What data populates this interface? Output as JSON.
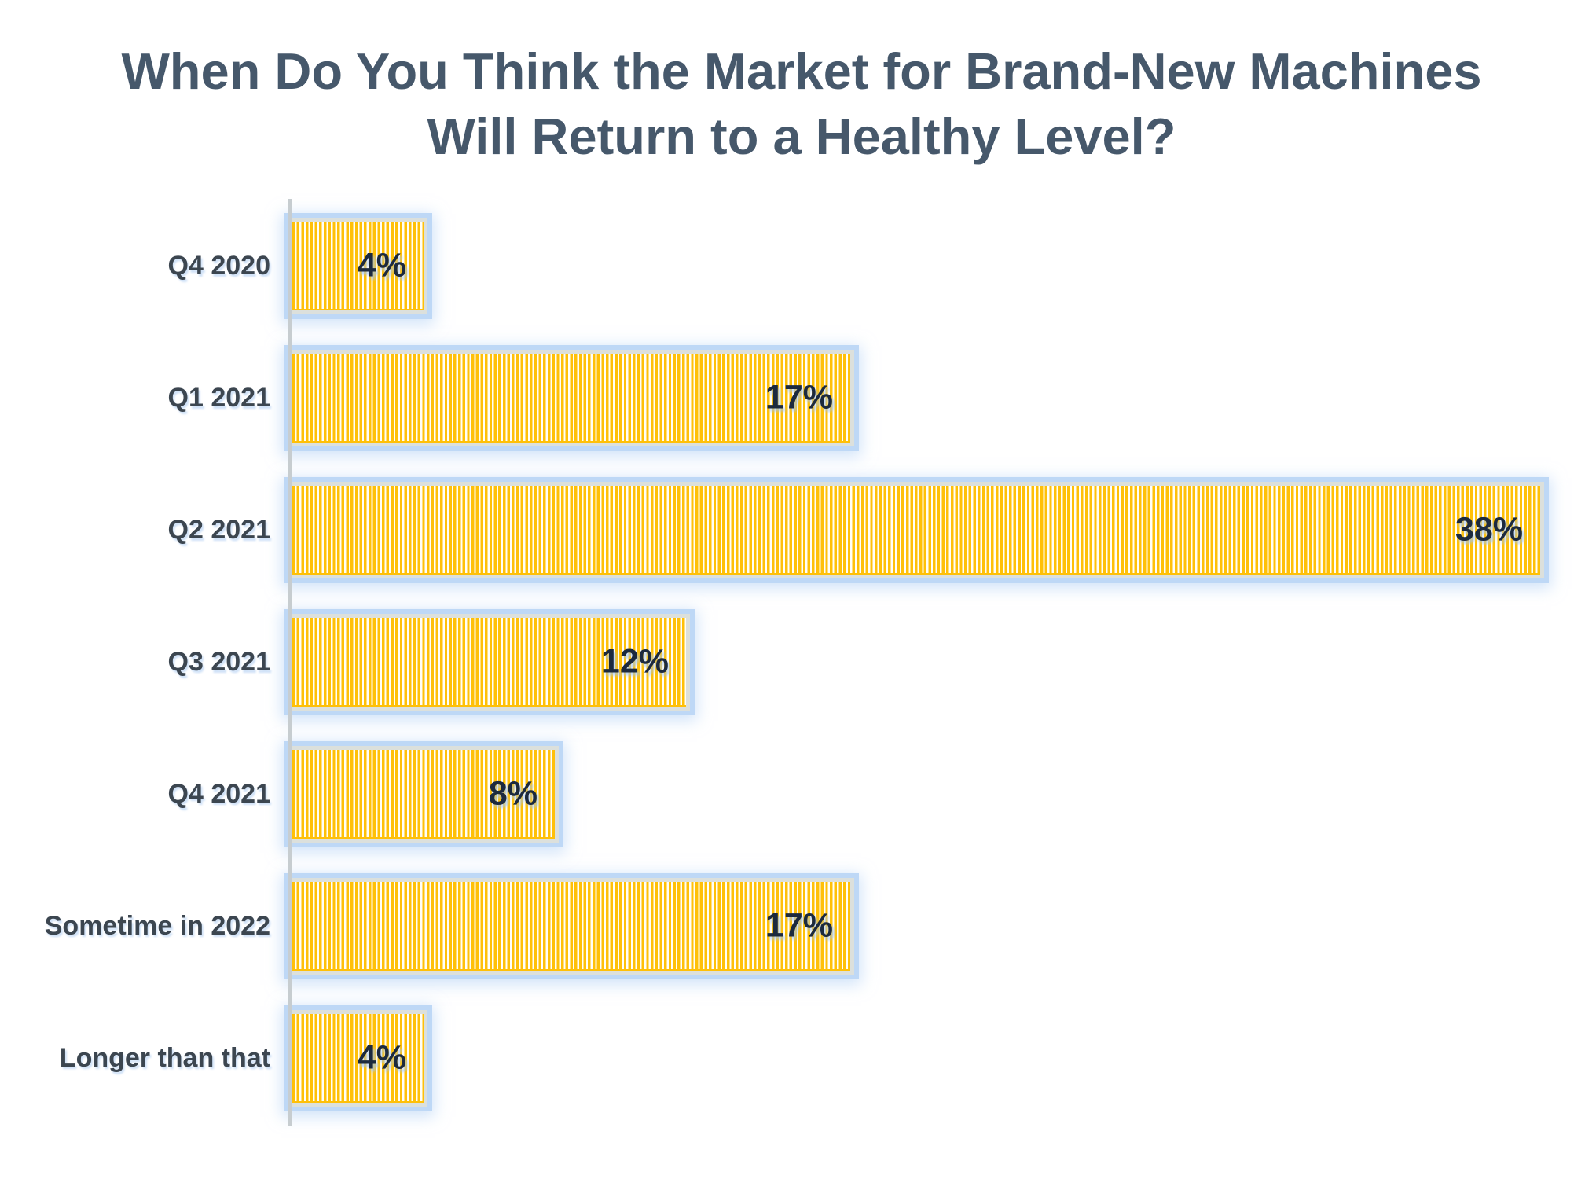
{
  "title": {
    "lines": [
      "When Do You Think the Market for Brand-New Machines",
      "Will Return to a Healthy Level?"
    ],
    "text": "When Do You Think the Market for Brand-New Machines Will Return to a Healthy Level?"
  },
  "chart_data": {
    "type": "bar",
    "orientation": "horizontal",
    "title": "When Do You Think the Market for Brand-New Machines Will Return to a Healthy Level?",
    "categories": [
      "Q4 2020",
      "Q1 2021",
      "Q2 2021",
      "Q3 2021",
      "Q4 2021",
      "Sometime in 2022",
      "Longer than that"
    ],
    "values": [
      4,
      17,
      38,
      12,
      8,
      17,
      4
    ],
    "value_labels": [
      "4%",
      "17%",
      "38%",
      "12%",
      "8%",
      "17%",
      "4%"
    ],
    "value_label_position": "inside-end",
    "xlabel": "",
    "ylabel": "",
    "xlim": [
      0,
      38
    ],
    "grid": false,
    "legend": false,
    "bar_fill_pattern": "vertical-stripes",
    "colors": {
      "title": "#46586B",
      "category_label": "#3C4650",
      "value_label": "#1C2A3E",
      "bar_stripe": "#FFC008",
      "bar_stripe_bg": "#FFFEF8",
      "bar_ring": "#DCE0DC",
      "bar_glow": "#BED8F6",
      "axis_line": "#C7CDD0"
    }
  }
}
